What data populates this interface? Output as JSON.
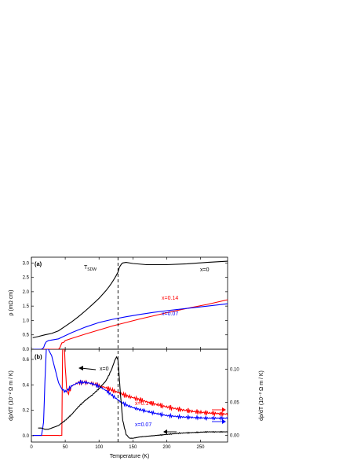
{
  "chart_data": [
    {
      "panel": "(a)",
      "type": "line",
      "ylabel": "ρ (mΩ cm)",
      "xlim": [
        0,
        290
      ],
      "ylim": [
        0,
        3.2
      ],
      "yticks": [
        "0.0",
        "0.5",
        "1.0",
        "1.5",
        "2.0",
        "2.5",
        "3.0"
      ],
      "annotations": {
        "tsdw": "T",
        "tsdw_sub": "SDW",
        "tsdw_x": 128
      },
      "colors": {
        "x0": "#000000",
        "x014": "#ff0000",
        "x007": "#0000ff"
      },
      "series": [
        {
          "name": "x=0",
          "color": "#000000",
          "x": [
            2,
            10,
            20,
            30,
            40,
            50,
            60,
            70,
            80,
            90,
            100,
            110,
            115,
            120,
            125,
            128,
            130,
            133,
            135,
            140,
            150,
            170,
            200,
            230,
            260,
            290
          ],
          "y": [
            0.4,
            0.44,
            0.5,
            0.55,
            0.64,
            0.8,
            0.96,
            1.14,
            1.34,
            1.55,
            1.77,
            2.03,
            2.18,
            2.35,
            2.55,
            2.68,
            2.85,
            2.96,
            3.0,
            3.02,
            2.98,
            2.94,
            2.94,
            2.97,
            3.02,
            3.06
          ]
        },
        {
          "name": "x=0.14",
          "color": "#ff0000",
          "x": [
            2,
            20,
            40,
            42,
            45,
            48,
            50,
            60,
            80,
            100,
            120,
            140,
            160,
            180,
            200,
            230,
            260,
            290
          ],
          "y": [
            0,
            0,
            0,
            0.05,
            0.22,
            0.24,
            0.3,
            0.38,
            0.53,
            0.67,
            0.81,
            0.93,
            1.05,
            1.16,
            1.27,
            1.42,
            1.56,
            1.72
          ]
        },
        {
          "name": "x=0.07",
          "color": "#0000ff",
          "x": [
            2,
            15,
            18,
            20,
            22,
            25,
            30,
            40,
            50,
            60,
            80,
            100,
            120,
            140,
            160,
            180,
            200,
            230,
            260,
            290
          ],
          "y": [
            0,
            0,
            0.05,
            0.18,
            0.26,
            0.3,
            0.32,
            0.36,
            0.47,
            0.58,
            0.77,
            0.93,
            1.04,
            1.13,
            1.21,
            1.28,
            1.34,
            1.42,
            1.5,
            1.58
          ]
        }
      ]
    },
    {
      "panel": "(b)",
      "type": "line",
      "xlabel": "Temperature (K)",
      "ylabel": "dρ/dT (10⁻² Ω m / K)",
      "ylabel_right": "dρ/dT (10⁻² Ω m / K)",
      "xlim": [
        0,
        290
      ],
      "ylim": [
        -0.05,
        0.68
      ],
      "ylim_right": [
        -0.01,
        0.13
      ],
      "xticks": [
        "0",
        "50",
        "100",
        "150",
        "200",
        "250"
      ],
      "yticks": [
        "0.0",
        "0.2",
        "0.4",
        "0.6"
      ],
      "yticks_right": [
        "0.00",
        "0.05",
        "0.10"
      ],
      "series": [
        {
          "name": "x=0",
          "color": "#000000",
          "axis": "left",
          "x": [
            10,
            15,
            20,
            25,
            30,
            35,
            40,
            45,
            50,
            60,
            70,
            80,
            90,
            100,
            110,
            115,
            120,
            123,
            126,
            128,
            130,
            132,
            135,
            140,
            145,
            150,
            160,
            170,
            180,
            200,
            220,
            240,
            260,
            290
          ],
          "y": [
            0.06,
            0.06,
            0.05,
            0.05,
            0.06,
            0.07,
            0.08,
            0.1,
            0.12,
            0.17,
            0.23,
            0.28,
            0.32,
            0.37,
            0.43,
            0.48,
            0.54,
            0.59,
            0.62,
            0.6,
            0.45,
            0.3,
            0.12,
            0.01,
            -0.02,
            -0.02,
            -0.01,
            -0.005,
            0.0,
            0.01,
            0.02,
            0.025,
            0.03,
            0.03
          ]
        },
        {
          "name": "x=0.14",
          "color": "#ff0000",
          "axis": "right",
          "x": [
            2,
            10,
            20,
            30,
            40,
            45,
            46,
            47,
            48,
            50,
            52,
            55,
            60,
            70,
            80,
            90,
            100,
            110,
            120,
            130,
            140,
            150,
            160,
            170,
            180,
            200,
            220,
            240,
            260,
            290
          ],
          "y": [
            0,
            0,
            0,
            0,
            0,
            0,
            0.12,
            0.18,
            0.16,
            0.1,
            0.07,
            0.065,
            0.075,
            0.08,
            0.08,
            0.078,
            0.075,
            0.072,
            0.068,
            0.064,
            0.06,
            0.057,
            0.054,
            0.051,
            0.048,
            0.043,
            0.039,
            0.036,
            0.034,
            0.032
          ]
        },
        {
          "name": "x=0.07",
          "color": "#0000ff",
          "axis": "right",
          "x": [
            2,
            10,
            15,
            18,
            20,
            22,
            25,
            30,
            35,
            40,
            45,
            50,
            55,
            60,
            70,
            80,
            90,
            100,
            110,
            120,
            130,
            140,
            150,
            160,
            180,
            200,
            220,
            240,
            260,
            290
          ],
          "y": [
            0,
            0,
            0,
            0.02,
            0.08,
            0.13,
            0.13,
            0.12,
            0.1,
            0.08,
            0.07,
            0.066,
            0.07,
            0.075,
            0.08,
            0.08,
            0.078,
            0.074,
            0.068,
            0.06,
            0.052,
            0.046,
            0.042,
            0.039,
            0.034,
            0.03,
            0.028,
            0.027,
            0.026,
            0.026
          ]
        }
      ],
      "labels": {
        "x0": "x=0",
        "x014": "x=0.14",
        "x007": "x=0.07"
      }
    }
  ]
}
